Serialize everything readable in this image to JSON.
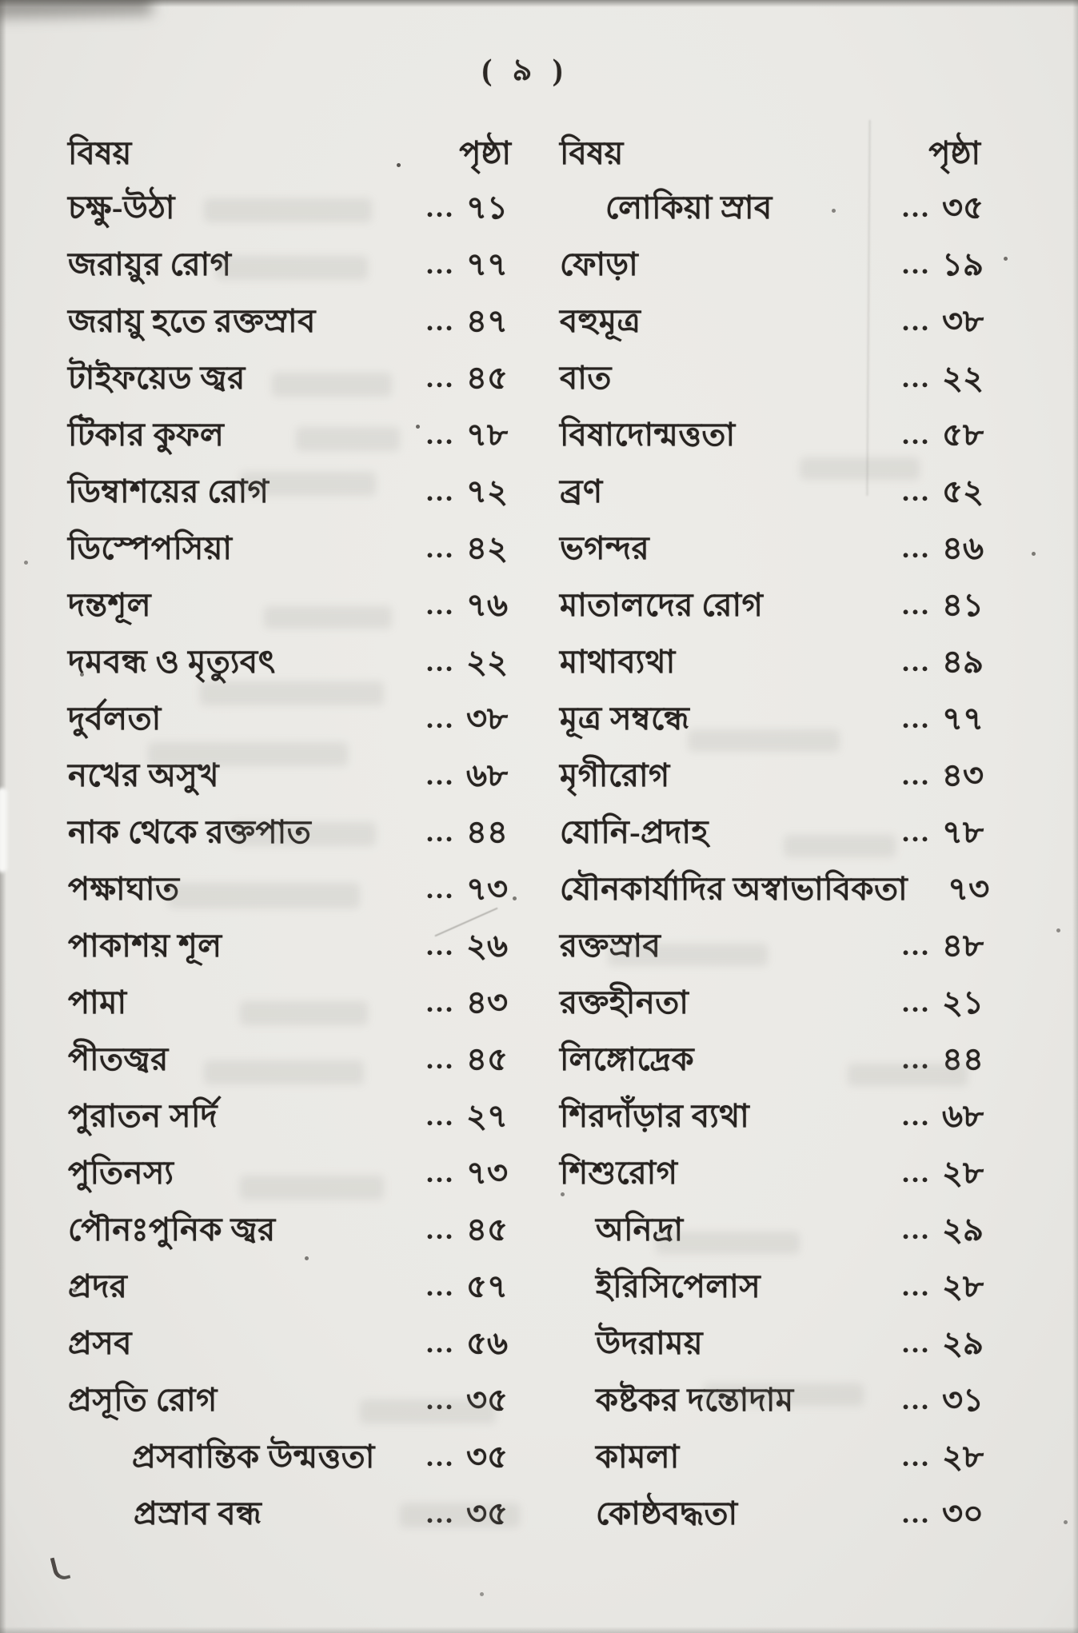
{
  "page_header": {
    "number": "( ৯ )"
  },
  "leader_dots": "...",
  "columns": [
    {
      "subject_header": "বিষয়",
      "page_header": "পৃষ্ঠা",
      "entries": [
        {
          "label": "চক্ষু-উঠা",
          "page": "৭১"
        },
        {
          "label": "জরায়ুর রোগ",
          "page": "৭৭"
        },
        {
          "label": "জরায়ু হতে রক্তস্রাব",
          "page": "৪৭"
        },
        {
          "label": "টাইফয়েড জ্বর",
          "page": "৪৫"
        },
        {
          "label": "টিকার কুফল",
          "page": "৭৮"
        },
        {
          "label": "ডিম্বাশয়ের রোগ",
          "page": "৭২"
        },
        {
          "label": "ডিস্পেপসিয়া",
          "page": "৪২"
        },
        {
          "label": "দন্তশূল",
          "page": "৭৬"
        },
        {
          "label": "দমবন্ধ ও মৃত্যুবৎ",
          "page": "২২"
        },
        {
          "label": "দুর্বলতা",
          "page": "৩৮"
        },
        {
          "label": "নখের অসুখ",
          "page": "৬৮"
        },
        {
          "label": "নাক থেকে রক্তপাত",
          "page": "৪৪"
        },
        {
          "label": "পক্ষাঘাত",
          "page": "৭৩"
        },
        {
          "label": "পাকাশয় শূল",
          "page": "২৬"
        },
        {
          "label": "পামা",
          "page": "৪৩"
        },
        {
          "label": "পীতজ্বর",
          "page": "৪৫"
        },
        {
          "label": "পুরাতন সর্দি",
          "page": "২৭"
        },
        {
          "label": "পুতিনস্য",
          "page": "৭৩"
        },
        {
          "label": "পৌনঃপুনিক জ্বর",
          "page": "৪৫"
        },
        {
          "label": "প্রদর",
          "page": "৫৭"
        },
        {
          "label": "প্রসব",
          "page": "৫৬"
        },
        {
          "label": "প্রসূতি রোগ",
          "page": "৩৫"
        },
        {
          "label": "প্রসবান্তিক উন্মত্ততা",
          "page": "৩৫",
          "indent": 80
        },
        {
          "label": "প্রস্রাব বন্ধ",
          "page": "৩৫",
          "indent": 82
        }
      ]
    },
    {
      "subject_header": "বিষয়",
      "page_header": "পৃষ্ঠা",
      "entries": [
        {
          "label": "লোকিয়া স্রাব",
          "page": "৩৫",
          "indent": 57
        },
        {
          "label": "ফোড়া",
          "page": "১৯"
        },
        {
          "label": "বহুমূত্র",
          "page": "৩৮"
        },
        {
          "label": "বাত",
          "page": "২২"
        },
        {
          "label": "বিষাদোন্মত্ততা",
          "page": "৫৮"
        },
        {
          "label": "ব্রণ",
          "page": "৫২"
        },
        {
          "label": "ভগন্দর",
          "page": "৪৬"
        },
        {
          "label": "মাতালদের রোগ",
          "page": "৪১"
        },
        {
          "label": "মাথাব্যথা",
          "page": "৪৯"
        },
        {
          "label": "মূত্র সম্বন্ধে",
          "page": "৭৭"
        },
        {
          "label": "মৃগীরোগ",
          "page": "৪৩"
        },
        {
          "label": "যোনি-প্রদাহ",
          "page": "৭৮"
        },
        {
          "label": "যৌনকার্যাদির অস্বাভাবিকতা",
          "page": "৭৩",
          "dots": false
        },
        {
          "label": "রক্তস্রাব",
          "page": "৪৮"
        },
        {
          "label": "রক্তহীনতা",
          "page": "২১"
        },
        {
          "label": "লিঙ্গোদ্রেক",
          "page": "৪৪"
        },
        {
          "label": "শিরদাঁড়ার ব্যথা",
          "page": "৬৮"
        },
        {
          "label": "শিশুরোগ",
          "page": "২৮"
        },
        {
          "label": "অনিদ্রা",
          "page": "২৯",
          "indent": 45
        },
        {
          "label": "ইরিসিপেলাস",
          "page": "২৮",
          "indent": 45
        },
        {
          "label": "উদরাময়",
          "page": "২৯",
          "indent": 45
        },
        {
          "label": "কষ্টকর দন্তোদাম",
          "page": "৩১",
          "indent": 45
        },
        {
          "label": "কামলা",
          "page": "২৮",
          "indent": 45
        },
        {
          "label": "কোষ্ঠবদ্ধতা",
          "page": "৩০",
          "indent": 45
        }
      ]
    }
  ]
}
